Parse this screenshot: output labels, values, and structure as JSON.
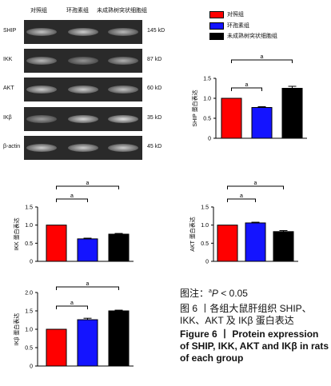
{
  "groups": [
    "对照组",
    "环孢素组",
    "未成熟树突状细胞组"
  ],
  "colors": [
    "#ff0000",
    "#1414ff",
    "#000000"
  ],
  "blots": [
    {
      "protein": "SHIP",
      "kd": "145 kD",
      "bands": [
        0.8,
        0.85,
        0.75
      ]
    },
    {
      "protein": "IKK",
      "kd": "87 kD",
      "bands": [
        0.75,
        0.55,
        0.7
      ]
    },
    {
      "protein": "AKT",
      "kd": "60 kD",
      "bands": [
        0.85,
        0.85,
        0.8
      ]
    },
    {
      "protein": "IKβ",
      "kd": "35 kD",
      "bands": [
        0.6,
        0.9,
        0.95
      ]
    },
    {
      "protein": "β-actin",
      "kd": "45 kD",
      "bands": [
        0.85,
        0.85,
        0.85
      ]
    }
  ],
  "chart_data": [
    {
      "id": "ship",
      "type": "bar",
      "categories": [
        "对照组",
        "环孢素组",
        "未成熟树突状细胞组"
      ],
      "values": [
        1.0,
        0.77,
        1.25
      ],
      "errors": [
        0.0,
        0.02,
        0.05
      ],
      "ylabel": "SHIP 蛋白表达",
      "ylim": [
        0,
        1.5
      ],
      "yticks": [
        "0",
        "0.5",
        "1.0",
        "1.5"
      ],
      "significance": [
        "a",
        "a"
      ]
    },
    {
      "id": "ikk",
      "type": "bar",
      "categories": [
        "对照组",
        "环孢素组",
        "未成熟树突状细胞组"
      ],
      "values": [
        1.0,
        0.62,
        0.75
      ],
      "errors": [
        0.0,
        0.02,
        0.02
      ],
      "ylabel": "IKK 蛋白表达",
      "ylim": [
        0,
        1.5
      ],
      "yticks": [
        "0",
        "0.5",
        "1.0",
        "1.5"
      ],
      "significance": [
        "a",
        "a"
      ]
    },
    {
      "id": "akt",
      "type": "bar",
      "categories": [
        "对照组",
        "环孢素组",
        "未成熟树突状细胞组"
      ],
      "values": [
        1.0,
        1.06,
        0.82
      ],
      "errors": [
        0.0,
        0.02,
        0.03
      ],
      "ylabel": "AKT 蛋白表达",
      "ylim": [
        0,
        1.5
      ],
      "yticks": [
        "0",
        "0.5",
        "1.0",
        "1.5"
      ],
      "significance": [
        "a",
        "a"
      ]
    },
    {
      "id": "ikb",
      "type": "bar",
      "categories": [
        "对照组",
        "环孢素组",
        "未成熟树突状细胞组"
      ],
      "values": [
        1.0,
        1.26,
        1.5
      ],
      "errors": [
        0.0,
        0.04,
        0.02
      ],
      "ylabel": "IKβ 蛋白表达",
      "ylim": [
        0,
        2.0
      ],
      "yticks": [
        "0",
        "0.5",
        "1.0",
        "1.5",
        "2.0"
      ],
      "significance": [
        "a",
        "a"
      ]
    }
  ],
  "caption": {
    "note_prefix": "图注：",
    "note_sup": "a",
    "note_p": "P",
    "note_rest": " < 0.05",
    "cn_title": "图 6 丨各组大鼠肝组织 SHIP、IKK、AKT 及 IKβ 蛋白表达",
    "en_title": "Figure 6 丨 Protein expression of SHIP, IKK, AKT and IKβ in rats of each group"
  }
}
